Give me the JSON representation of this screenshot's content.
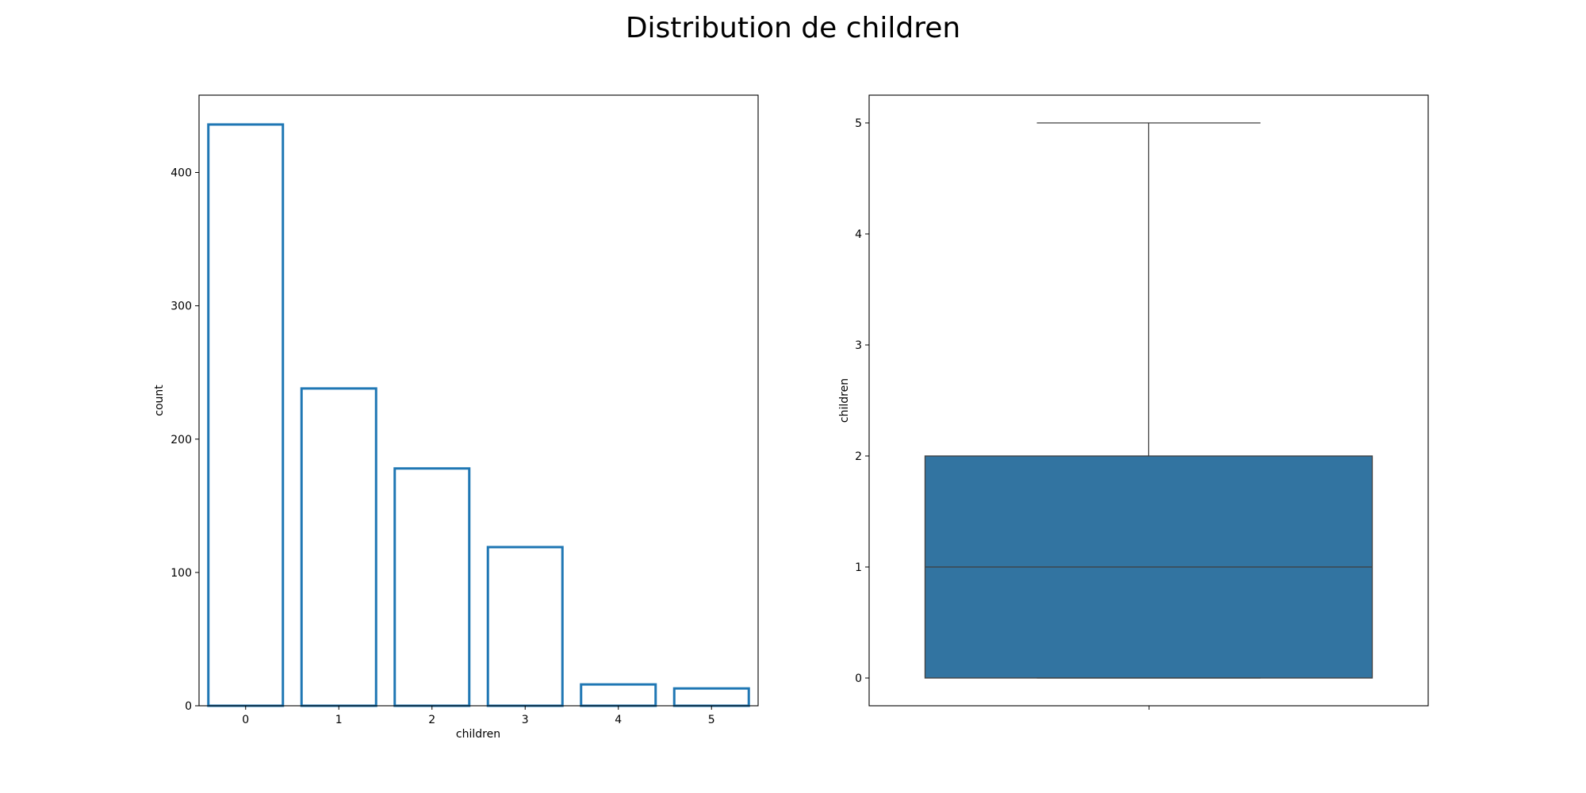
{
  "figure": {
    "suptitle": "Distribution de children"
  },
  "chart_data": [
    {
      "type": "bar",
      "style": "outlined bars",
      "bar_color": "#1f77b4",
      "xlabel": "children",
      "ylabel": "count",
      "categories": [
        "0",
        "1",
        "2",
        "3",
        "4",
        "5"
      ],
      "values": [
        436,
        238,
        178,
        119,
        16,
        13
      ],
      "ylim": [
        0,
        458
      ],
      "yticks": [
        0,
        100,
        200,
        300,
        400
      ]
    },
    {
      "type": "box",
      "box_color": "#3274a1",
      "line_color": "#3f3f3f",
      "ylabel": "children",
      "min": 0,
      "q1": 0,
      "median": 1,
      "q3": 2,
      "max": 5,
      "ylim": [
        -0.25,
        5.25
      ],
      "yticks": [
        0,
        1,
        2,
        3,
        4,
        5
      ]
    }
  ]
}
